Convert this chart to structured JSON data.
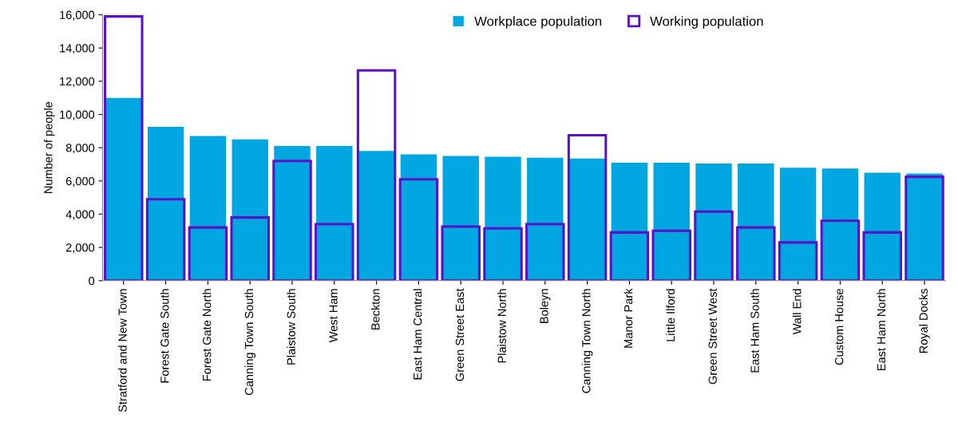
{
  "chart_data": {
    "type": "bar",
    "ylabel": "Number of people",
    "categories": [
      "Stratford and New Town",
      "Forest Gate South",
      "Forest Gate North",
      "Canning Town South",
      "Plaistow South",
      "West Ham",
      "Beckton",
      "East Ham Central",
      "Green Street East",
      "Plaistow North",
      "Boleyn",
      "Canning Town North",
      "Manor Park",
      "Little Ilford",
      "Green Street West",
      "East Ham South",
      "Wall End",
      "Custom House",
      "East Ham North",
      "Royal Docks"
    ],
    "series": [
      {
        "name": "Workplace population",
        "color": "#00a6e0",
        "values": [
          11000,
          9250,
          8700,
          8500,
          8100,
          8100,
          7800,
          7600,
          7500,
          7450,
          7400,
          7350,
          7100,
          7100,
          7050,
          7050,
          6800,
          6750,
          6500,
          6450
        ]
      },
      {
        "name": "Working population",
        "color": "#5a10c8",
        "values": [
          15900,
          4900,
          3200,
          3800,
          7200,
          3400,
          12650,
          6100,
          3250,
          3150,
          3400,
          8750,
          2900,
          3000,
          4150,
          3200,
          2300,
          3600,
          2900,
          6250
        ]
      }
    ],
    "ylim": [
      0,
      16000
    ],
    "yticks": [
      {
        "value": 0,
        "label": "0"
      },
      {
        "value": 2000,
        "label": "2,000"
      },
      {
        "value": 4000,
        "label": "4,000"
      },
      {
        "value": 6000,
        "label": "6,000"
      },
      {
        "value": 8000,
        "label": "8,000"
      },
      {
        "value": 10000,
        "label": "10,000"
      },
      {
        "value": 12000,
        "label": "12,000"
      },
      {
        "value": 14000,
        "label": "14,000"
      },
      {
        "value": 16000,
        "label": "16,000"
      }
    ],
    "grid": false,
    "legend": "top"
  }
}
